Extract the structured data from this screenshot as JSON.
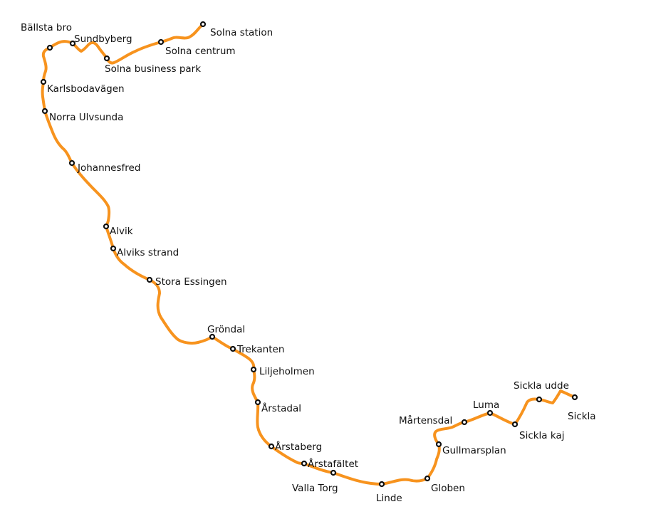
{
  "map": {
    "line_color": "#f7931e",
    "stations": [
      {
        "id": "solna-station",
        "name": "Solna station"
      },
      {
        "id": "solna-centrum",
        "name": "Solna centrum"
      },
      {
        "id": "solna-business-park",
        "name": "Solna business park"
      },
      {
        "id": "sundbyberg",
        "name": "Sundbyberg"
      },
      {
        "id": "ballsta-bro",
        "name": "Bällsta bro"
      },
      {
        "id": "karlsbodavagen",
        "name": "Karlsbodavägen"
      },
      {
        "id": "norra-ulvsunda",
        "name": "Norra Ulvsunda"
      },
      {
        "id": "johannesfred",
        "name": "Johannesfred"
      },
      {
        "id": "alvik",
        "name": "Alvik"
      },
      {
        "id": "alviks-strand",
        "name": "Alviks strand"
      },
      {
        "id": "stora-essingen",
        "name": "Stora Essingen"
      },
      {
        "id": "grondal",
        "name": "Gröndal"
      },
      {
        "id": "trekanten",
        "name": "Trekanten"
      },
      {
        "id": "liljeholmen",
        "name": "Liljeholmen"
      },
      {
        "id": "arstadal",
        "name": "Årstadal"
      },
      {
        "id": "arstaberg",
        "name": "Årstaberg"
      },
      {
        "id": "arstafaltet",
        "name": "Årstafältet"
      },
      {
        "id": "valla-torg",
        "name": "Valla Torg"
      },
      {
        "id": "linde",
        "name": "Linde"
      },
      {
        "id": "globen",
        "name": "Globen"
      },
      {
        "id": "gullmarsplan",
        "name": "Gullmarsplan"
      },
      {
        "id": "martensdal",
        "name": "Mårtensdal"
      },
      {
        "id": "luma",
        "name": "Luma"
      },
      {
        "id": "sickla-kaj",
        "name": "Sickla kaj"
      },
      {
        "id": "sickla-udde",
        "name": "Sickla udde"
      },
      {
        "id": "sickla",
        "name": "Sickla"
      }
    ]
  }
}
